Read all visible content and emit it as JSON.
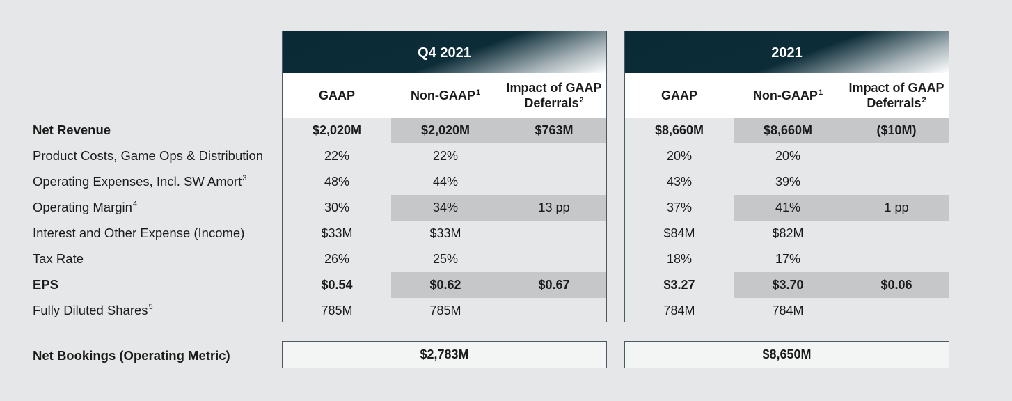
{
  "rows": [
    {
      "label": "Net Revenue",
      "sup": "",
      "bold": true
    },
    {
      "label": "Product Costs, Game Ops & Distribution",
      "sup": "",
      "bold": false
    },
    {
      "label": "Operating Expenses, Incl. SW Amort",
      "sup": "3",
      "bold": false
    },
    {
      "label": "Operating Margin",
      "sup": "4",
      "bold": false
    },
    {
      "label": "Interest and Other Expense (Income)",
      "sup": "",
      "bold": false
    },
    {
      "label": "Tax Rate",
      "sup": "",
      "bold": false
    },
    {
      "label": "EPS",
      "sup": "",
      "bold": true
    },
    {
      "label": "Fully Diluted Shares",
      "sup": "5",
      "bold": false
    }
  ],
  "columns": [
    {
      "label": "GAAP",
      "sup": ""
    },
    {
      "label": "Non-GAAP",
      "sup": "1"
    },
    {
      "label": "Impact of GAAP Deferrals",
      "sup": "2"
    }
  ],
  "panels": [
    {
      "title": "Q4 2021",
      "values": [
        [
          "$2,020M",
          "$2,020M",
          "$763M"
        ],
        [
          "22%",
          "22%",
          ""
        ],
        [
          "48%",
          "44%",
          ""
        ],
        [
          "30%",
          "34%",
          "13 pp"
        ],
        [
          "$33M",
          "$33M",
          ""
        ],
        [
          "26%",
          "25%",
          ""
        ],
        [
          "$0.54",
          "$0.62",
          "$0.67"
        ],
        [
          "785M",
          "785M",
          ""
        ]
      ],
      "net_bookings": "$2,783M"
    },
    {
      "title": "2021",
      "values": [
        [
          "$8,660M",
          "$8,660M",
          "($10M)"
        ],
        [
          "20%",
          "20%",
          ""
        ],
        [
          "43%",
          "39%",
          ""
        ],
        [
          "37%",
          "41%",
          "1 pp"
        ],
        [
          "$84M",
          "$82M",
          ""
        ],
        [
          "18%",
          "17%",
          ""
        ],
        [
          "$3.27",
          "$3.70",
          "$0.06"
        ],
        [
          "784M",
          "784M",
          ""
        ]
      ],
      "net_bookings": "$8,650M"
    }
  ],
  "net_bookings_label": "Net Bookings (Operating Metric)",
  "shaded_rows": [
    0,
    3,
    6
  ],
  "colors": {
    "header_dark": "#0a2a36",
    "shade": "#c6c7c9",
    "border": "#4b5a62",
    "background": "#e6e7e8"
  }
}
